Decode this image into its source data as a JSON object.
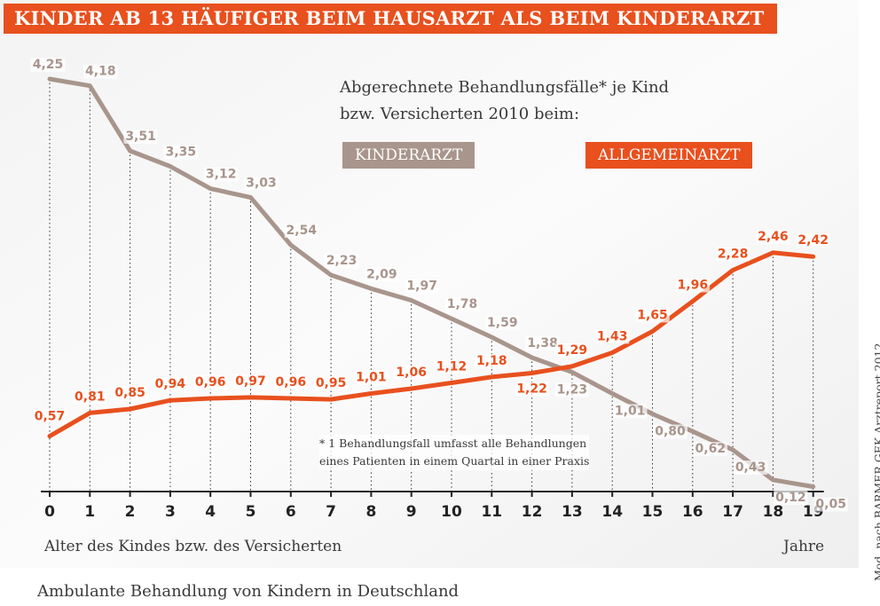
{
  "header": {
    "title": "KINDER AB 13 HÄUFIGER BEIM HAUSARZT ALS BEIM KINDERARZT",
    "subtitle_line1": "Abgerechnete Behandlungsfälle* je Kind",
    "subtitle_line2": "bzw. Versicherten 2010 beim:"
  },
  "legend": {
    "kinderarzt": "KINDERARZT",
    "allgemeinarzt": "ALLGEMEINARZT"
  },
  "footnote": {
    "line1": "* 1 Behandlungsfall umfasst alle Behandlungen",
    "line2": "eines Patienten in einem Quartal in einer Praxis"
  },
  "x_axis_label": "Alter des Kindes bzw. des Versicherten",
  "x_axis_unit": "Jahre",
  "caption": "Ambulante Behandlung von Kindern in Deutschland",
  "source": "Mod. nach BARMER GEK Arztreport 2012",
  "colors": {
    "accent": "#e8501e",
    "kinderarzt": "#a8958c",
    "text": "#3a3a3a"
  },
  "chart_data": {
    "type": "line",
    "title": "KINDER AB 13 HÄUFIGER BEIM HAUSARZT ALS BEIM KINDERARZT",
    "xlabel": "Alter des Kindes bzw. des Versicherten",
    "ylabel": "",
    "x": [
      0,
      1,
      2,
      3,
      4,
      5,
      6,
      7,
      8,
      9,
      10,
      11,
      12,
      13,
      14,
      15,
      16,
      17,
      18,
      19
    ],
    "xlim": [
      0,
      19
    ],
    "ylim": [
      0,
      4.25
    ],
    "series": [
      {
        "name": "KINDERARZT",
        "values": [
          4.25,
          4.18,
          3.51,
          3.35,
          3.12,
          3.03,
          2.54,
          2.23,
          2.09,
          1.97,
          1.78,
          1.59,
          1.38,
          1.23,
          1.01,
          0.8,
          0.62,
          0.43,
          0.12,
          0.05
        ],
        "labels": [
          "4,25",
          "4,18",
          "3,51",
          "3,35",
          "3,12",
          "3,03",
          "2,54",
          "2,23",
          "2,09",
          "1,97",
          "1,78",
          "1,59",
          "1,38",
          "1,23",
          "1,01",
          "0,80",
          "0,62",
          "0,43",
          "0,12",
          "0,05"
        ]
      },
      {
        "name": "ALLGEMEINARZT",
        "values": [
          0.57,
          0.81,
          0.85,
          0.94,
          0.96,
          0.97,
          0.96,
          0.95,
          1.01,
          1.06,
          1.12,
          1.18,
          1.22,
          1.29,
          1.43,
          1.65,
          1.96,
          2.28,
          2.46,
          2.42
        ],
        "labels": [
          "0,57",
          "0,81",
          "0,85",
          "0,94",
          "0,96",
          "0,97",
          "0,96",
          "0,95",
          "1,01",
          "1,06",
          "1,12",
          "1,18",
          "1,22",
          "1,29",
          "1,43",
          "1,65",
          "1,96",
          "2,28",
          "2,46",
          "2,42"
        ]
      }
    ]
  }
}
